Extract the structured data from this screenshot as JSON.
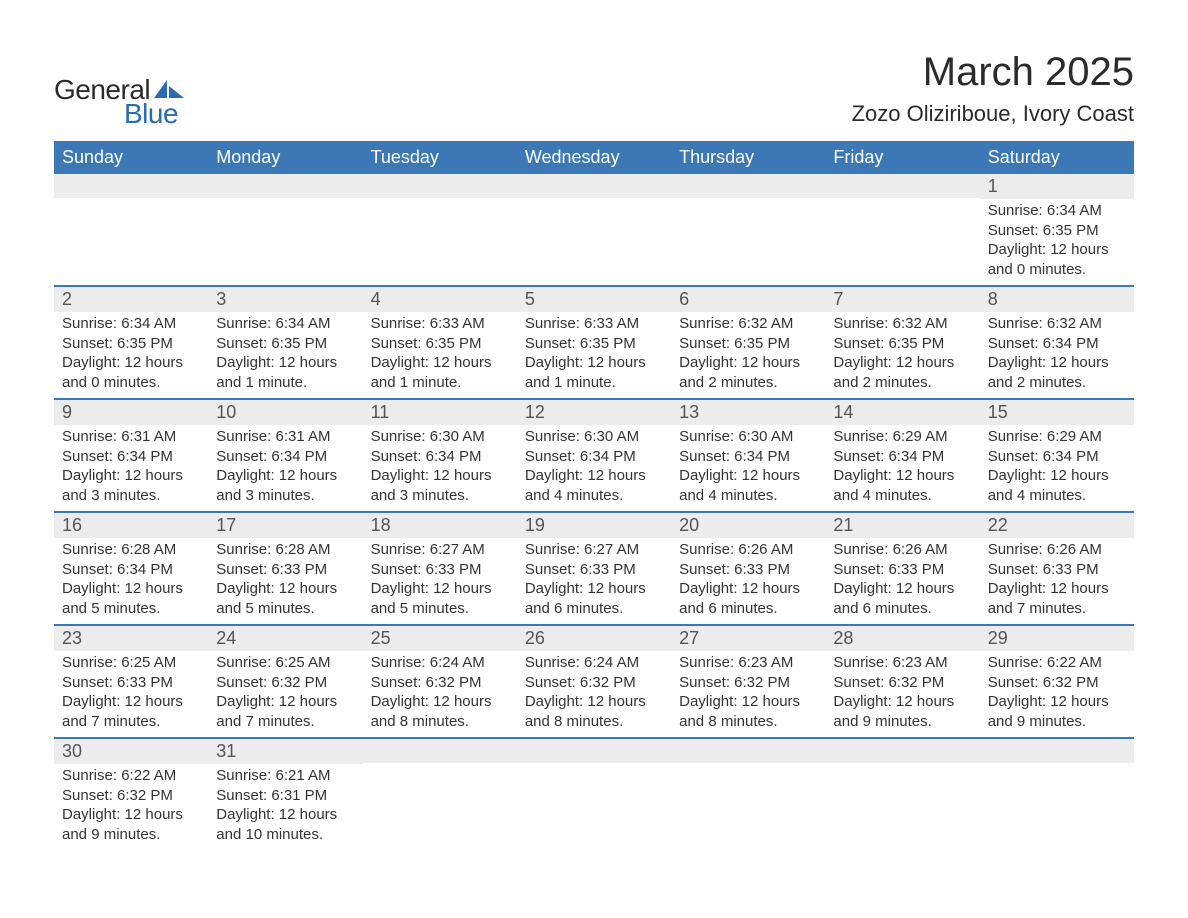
{
  "logo": {
    "text_top": "General",
    "text_bottom": "Blue",
    "shape_color": "#2b6cb0",
    "text_color_top": "#2a2a2a",
    "text_color_bottom": "#2b6cb0"
  },
  "header": {
    "month_title": "March 2025",
    "location": "Zozo Oliziriboue, Ivory Coast"
  },
  "colors": {
    "header_bg": "#3b78b5",
    "header_text": "#ffffff",
    "daynum_bg": "#ececec",
    "daynum_text": "#555555",
    "body_text": "#333333",
    "row_divider": "#3b78b5",
    "page_bg": "#ffffff"
  },
  "fonts": {
    "title_size_pt": 40,
    "location_size_pt": 22,
    "dayheader_size_pt": 18,
    "daynum_size_pt": 18,
    "body_size_pt": 15
  },
  "calendar": {
    "type": "table",
    "day_headers": [
      "Sunday",
      "Monday",
      "Tuesday",
      "Wednesday",
      "Thursday",
      "Friday",
      "Saturday"
    ],
    "labels": {
      "sunrise": "Sunrise:",
      "sunset": "Sunset:",
      "daylight": "Daylight:"
    },
    "weeks": [
      [
        {
          "day": "",
          "sunrise": "",
          "sunset": "",
          "daylight": ""
        },
        {
          "day": "",
          "sunrise": "",
          "sunset": "",
          "daylight": ""
        },
        {
          "day": "",
          "sunrise": "",
          "sunset": "",
          "daylight": ""
        },
        {
          "day": "",
          "sunrise": "",
          "sunset": "",
          "daylight": ""
        },
        {
          "day": "",
          "sunrise": "",
          "sunset": "",
          "daylight": ""
        },
        {
          "day": "",
          "sunrise": "",
          "sunset": "",
          "daylight": ""
        },
        {
          "day": "1",
          "sunrise": "6:34 AM",
          "sunset": "6:35 PM",
          "daylight": "12 hours and 0 minutes."
        }
      ],
      [
        {
          "day": "2",
          "sunrise": "6:34 AM",
          "sunset": "6:35 PM",
          "daylight": "12 hours and 0 minutes."
        },
        {
          "day": "3",
          "sunrise": "6:34 AM",
          "sunset": "6:35 PM",
          "daylight": "12 hours and 1 minute."
        },
        {
          "day": "4",
          "sunrise": "6:33 AM",
          "sunset": "6:35 PM",
          "daylight": "12 hours and 1 minute."
        },
        {
          "day": "5",
          "sunrise": "6:33 AM",
          "sunset": "6:35 PM",
          "daylight": "12 hours and 1 minute."
        },
        {
          "day": "6",
          "sunrise": "6:32 AM",
          "sunset": "6:35 PM",
          "daylight": "12 hours and 2 minutes."
        },
        {
          "day": "7",
          "sunrise": "6:32 AM",
          "sunset": "6:35 PM",
          "daylight": "12 hours and 2 minutes."
        },
        {
          "day": "8",
          "sunrise": "6:32 AM",
          "sunset": "6:34 PM",
          "daylight": "12 hours and 2 minutes."
        }
      ],
      [
        {
          "day": "9",
          "sunrise": "6:31 AM",
          "sunset": "6:34 PM",
          "daylight": "12 hours and 3 minutes."
        },
        {
          "day": "10",
          "sunrise": "6:31 AM",
          "sunset": "6:34 PM",
          "daylight": "12 hours and 3 minutes."
        },
        {
          "day": "11",
          "sunrise": "6:30 AM",
          "sunset": "6:34 PM",
          "daylight": "12 hours and 3 minutes."
        },
        {
          "day": "12",
          "sunrise": "6:30 AM",
          "sunset": "6:34 PM",
          "daylight": "12 hours and 4 minutes."
        },
        {
          "day": "13",
          "sunrise": "6:30 AM",
          "sunset": "6:34 PM",
          "daylight": "12 hours and 4 minutes."
        },
        {
          "day": "14",
          "sunrise": "6:29 AM",
          "sunset": "6:34 PM",
          "daylight": "12 hours and 4 minutes."
        },
        {
          "day": "15",
          "sunrise": "6:29 AM",
          "sunset": "6:34 PM",
          "daylight": "12 hours and 4 minutes."
        }
      ],
      [
        {
          "day": "16",
          "sunrise": "6:28 AM",
          "sunset": "6:34 PM",
          "daylight": "12 hours and 5 minutes."
        },
        {
          "day": "17",
          "sunrise": "6:28 AM",
          "sunset": "6:33 PM",
          "daylight": "12 hours and 5 minutes."
        },
        {
          "day": "18",
          "sunrise": "6:27 AM",
          "sunset": "6:33 PM",
          "daylight": "12 hours and 5 minutes."
        },
        {
          "day": "19",
          "sunrise": "6:27 AM",
          "sunset": "6:33 PM",
          "daylight": "12 hours and 6 minutes."
        },
        {
          "day": "20",
          "sunrise": "6:26 AM",
          "sunset": "6:33 PM",
          "daylight": "12 hours and 6 minutes."
        },
        {
          "day": "21",
          "sunrise": "6:26 AM",
          "sunset": "6:33 PM",
          "daylight": "12 hours and 6 minutes."
        },
        {
          "day": "22",
          "sunrise": "6:26 AM",
          "sunset": "6:33 PM",
          "daylight": "12 hours and 7 minutes."
        }
      ],
      [
        {
          "day": "23",
          "sunrise": "6:25 AM",
          "sunset": "6:33 PM",
          "daylight": "12 hours and 7 minutes."
        },
        {
          "day": "24",
          "sunrise": "6:25 AM",
          "sunset": "6:32 PM",
          "daylight": "12 hours and 7 minutes."
        },
        {
          "day": "25",
          "sunrise": "6:24 AM",
          "sunset": "6:32 PM",
          "daylight": "12 hours and 8 minutes."
        },
        {
          "day": "26",
          "sunrise": "6:24 AM",
          "sunset": "6:32 PM",
          "daylight": "12 hours and 8 minutes."
        },
        {
          "day": "27",
          "sunrise": "6:23 AM",
          "sunset": "6:32 PM",
          "daylight": "12 hours and 8 minutes."
        },
        {
          "day": "28",
          "sunrise": "6:23 AM",
          "sunset": "6:32 PM",
          "daylight": "12 hours and 9 minutes."
        },
        {
          "day": "29",
          "sunrise": "6:22 AM",
          "sunset": "6:32 PM",
          "daylight": "12 hours and 9 minutes."
        }
      ],
      [
        {
          "day": "30",
          "sunrise": "6:22 AM",
          "sunset": "6:32 PM",
          "daylight": "12 hours and 9 minutes."
        },
        {
          "day": "31",
          "sunrise": "6:21 AM",
          "sunset": "6:31 PM",
          "daylight": "12 hours and 10 minutes."
        },
        {
          "day": "",
          "sunrise": "",
          "sunset": "",
          "daylight": ""
        },
        {
          "day": "",
          "sunrise": "",
          "sunset": "",
          "daylight": ""
        },
        {
          "day": "",
          "sunrise": "",
          "sunset": "",
          "daylight": ""
        },
        {
          "day": "",
          "sunrise": "",
          "sunset": "",
          "daylight": ""
        },
        {
          "day": "",
          "sunrise": "",
          "sunset": "",
          "daylight": ""
        }
      ]
    ]
  }
}
